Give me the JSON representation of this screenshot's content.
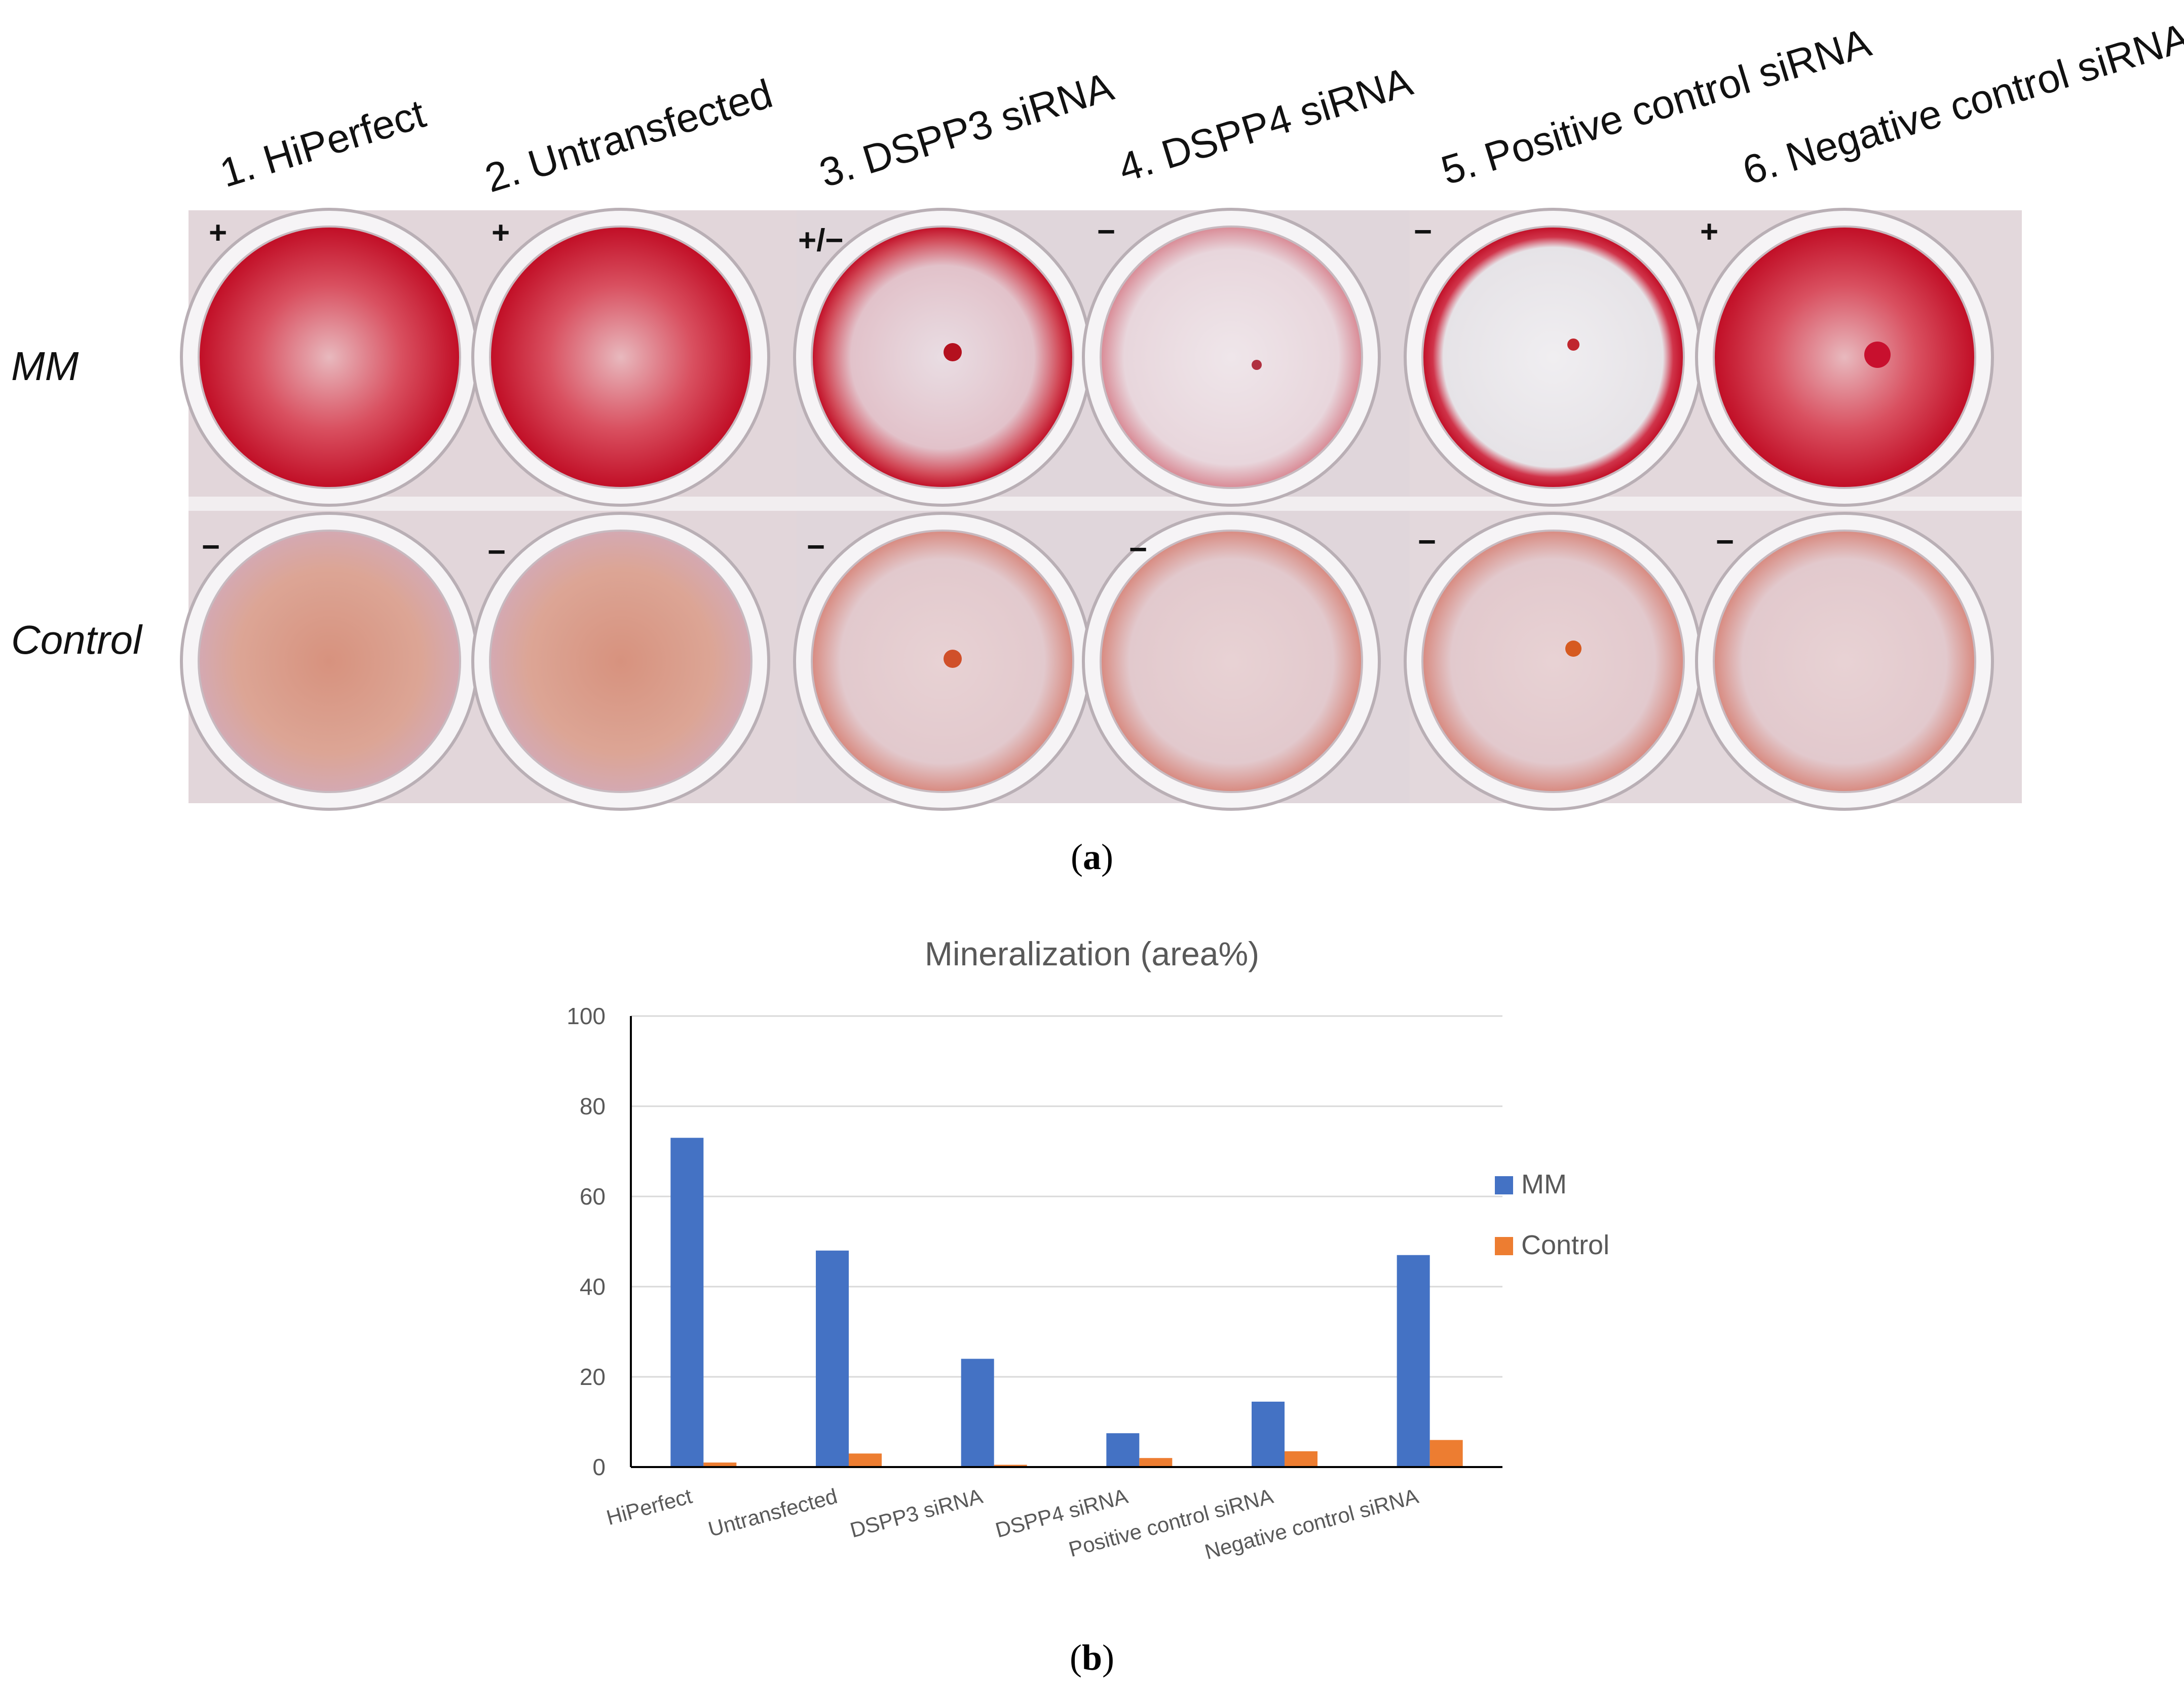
{
  "figure_a": {
    "panel_label": "a",
    "columns": [
      "1. HiPerfect",
      "2. Untransfected",
      "3. DSPP3 siRNA",
      "4. DSPP4 siRNA",
      "5. Positive control siRNA",
      "6. Negative control siRNA"
    ],
    "rows": [
      "MM",
      "Control"
    ],
    "signs": {
      "MM": [
        "+",
        "+",
        "+/−",
        "−",
        "−",
        "+"
      ],
      "Control": [
        "−",
        "−",
        "−",
        "−",
        "−",
        "−"
      ]
    }
  },
  "figure_b": {
    "panel_label": "b"
  },
  "colors": {
    "mm": "#4472C4",
    "control": "#ED7D31",
    "gridline": "#D9D9D9",
    "axis": "#000000",
    "stain_strong": "#C8102E",
    "stain_weak": "#D98868",
    "plate": "#E4D8DC",
    "well_bg": "#EFE8EC"
  },
  "chart_data": {
    "type": "bar",
    "title": "Mineralization (area%)",
    "categories": [
      "HiPerfect",
      "Untransfected",
      "DSPP3 siRNA",
      "DSPP4 siRNA",
      "Positive control siRNA",
      "Negative control siRNA"
    ],
    "series": [
      {
        "name": "MM",
        "values": [
          73,
          48,
          24,
          7.5,
          14.5,
          47
        ]
      },
      {
        "name": "Control",
        "values": [
          1,
          3,
          0.5,
          2,
          3.5,
          6
        ]
      }
    ],
    "xlabel": "",
    "ylabel": "",
    "ylim": [
      0,
      100
    ],
    "yticks": [
      0,
      20,
      40,
      60,
      80,
      100
    ],
    "grid": true,
    "legend": "right"
  }
}
